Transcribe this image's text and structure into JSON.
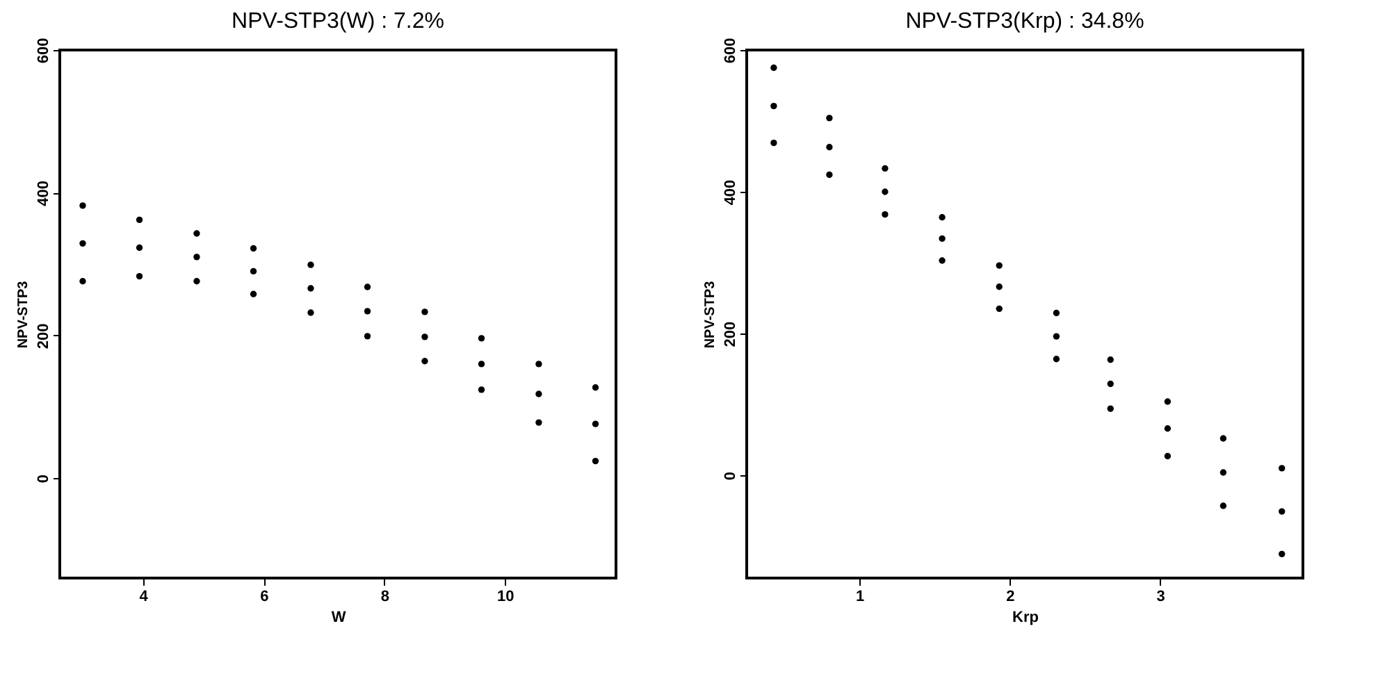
{
  "chart_data": [
    {
      "type": "scatter",
      "title": "NPV-STP3(W) : 7.2%",
      "xlabel": "W",
      "ylabel": "NPV-STP3",
      "xlim": [
        2.62,
        11.84
      ],
      "xticks": [
        4,
        6,
        8,
        10
      ],
      "ylim": [
        -140,
        600
      ],
      "yticks": [
        0,
        200,
        400,
        600
      ],
      "marker": "circle",
      "x": [
        3,
        3.94,
        4.89,
        5.83,
        6.78,
        7.72,
        8.67,
        9.61,
        10.56,
        11.5
      ],
      "series": [
        {
          "color": "#000000",
          "values": [
            382,
            362,
            343,
            322,
            299,
            268,
            233,
            196,
            160,
            127
          ]
        },
        {
          "color": "#000000",
          "values": [
            329,
            323,
            310,
            290,
            266,
            234,
            198,
            160,
            118,
            76
          ]
        },
        {
          "color": "#000000",
          "values": [
            276,
            283,
            276,
            258,
            232,
            199,
            164,
            124,
            78,
            24
          ]
        }
      ]
    },
    {
      "type": "scatter",
      "title": "NPV-STP3(Krp) : 34.8%",
      "xlabel": "Krp",
      "ylabel": "NPV-STP3",
      "xlim": [
        0.25,
        3.95
      ],
      "xticks": [
        1,
        2,
        3
      ],
      "ylim": [
        -145,
        600
      ],
      "yticks": [
        0,
        200,
        400,
        600
      ],
      "marker": "circle",
      "x": [
        0.43,
        0.8,
        1.17,
        1.55,
        1.93,
        2.31,
        2.67,
        3.05,
        3.42,
        3.81
      ],
      "series": [
        {
          "color": "#000000",
          "values": [
            575,
            504,
            433,
            364,
            296,
            229,
            163,
            104,
            52,
            10
          ]
        },
        {
          "color": "#000000",
          "values": [
            521,
            463,
            400,
            334,
            266,
            196,
            129,
            66,
            4,
            -51
          ]
        },
        {
          "color": "#000000",
          "values": [
            469,
            424,
            368,
            303,
            235,
            164,
            94,
            27,
            -43,
            -111
          ]
        }
      ]
    }
  ]
}
